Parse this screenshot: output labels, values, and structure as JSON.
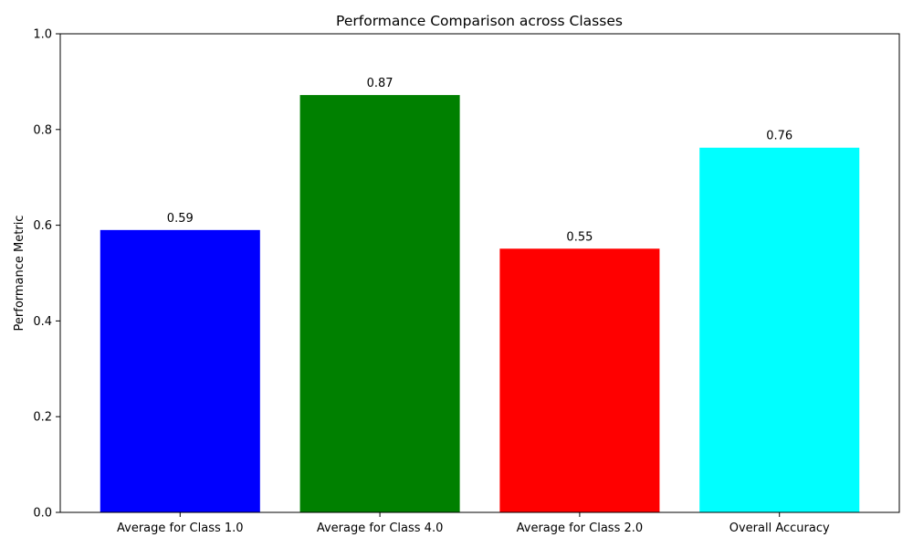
{
  "chart_data": {
    "type": "bar",
    "title": "Performance Comparison across Classes",
    "xlabel": "",
    "ylabel": "Performance Metric",
    "categories": [
      "Average for Class 1.0",
      "Average for Class 4.0",
      "Average for Class 2.0",
      "Overall Accuracy"
    ],
    "values": [
      0.59,
      0.872,
      0.551,
      0.762
    ],
    "data_labels": [
      "0.59",
      "0.87",
      "0.55",
      "0.76"
    ],
    "colors": [
      "#0000ff",
      "#008000",
      "#ff0000",
      "#00ffff"
    ],
    "ylim": [
      0,
      1.0
    ],
    "yticks": [
      0.0,
      0.2,
      0.4,
      0.6,
      0.8,
      1.0
    ],
    "ytick_labels": [
      "0.0",
      "0.2",
      "0.4",
      "0.6",
      "0.8",
      "1.0"
    ],
    "grid": false,
    "legend": "none"
  }
}
